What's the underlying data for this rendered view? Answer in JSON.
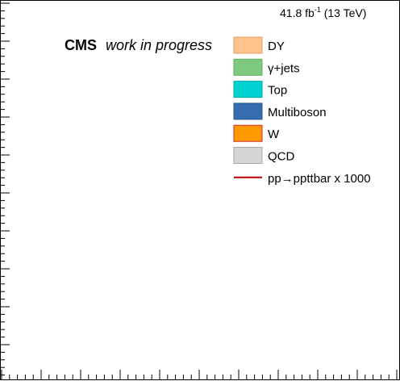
{
  "chart_data": {
    "type": "bar",
    "title": "",
    "xlabel": "",
    "ylabel": "",
    "grid": false,
    "legend_placement": "top-right",
    "luminosity_label": {
      "value": "41.8 fb",
      "superscript": "-1",
      "suffix": " (13 TeV)"
    },
    "experiment_label": "CMS",
    "status_label": "work in progress",
    "series": [
      {
        "name": "DY",
        "kind": "fill",
        "fill": "#ffc48c",
        "stroke": "#e0a060",
        "values": []
      },
      {
        "name": "γ+jets",
        "kind": "fill",
        "fill": "#7fc97f",
        "stroke": "#5faf5f",
        "values": []
      },
      {
        "name": "Top",
        "kind": "fill",
        "fill": "#00d2d2",
        "stroke": "#00a8a8",
        "values": []
      },
      {
        "name": "Multiboson",
        "kind": "fill",
        "fill": "#386cb0",
        "stroke": "#2a5590",
        "values": []
      },
      {
        "name": "W",
        "kind": "fill",
        "fill": "#ff9900",
        "stroke": "#d62728",
        "values": []
      },
      {
        "name": "QCD",
        "kind": "fill",
        "fill": "#d6d6d6",
        "stroke": "#a8a8a8",
        "values": []
      },
      {
        "name": "pp→ppttbar x 1000",
        "kind": "line",
        "fill": "",
        "stroke": "#c00000",
        "values": []
      }
    ]
  }
}
